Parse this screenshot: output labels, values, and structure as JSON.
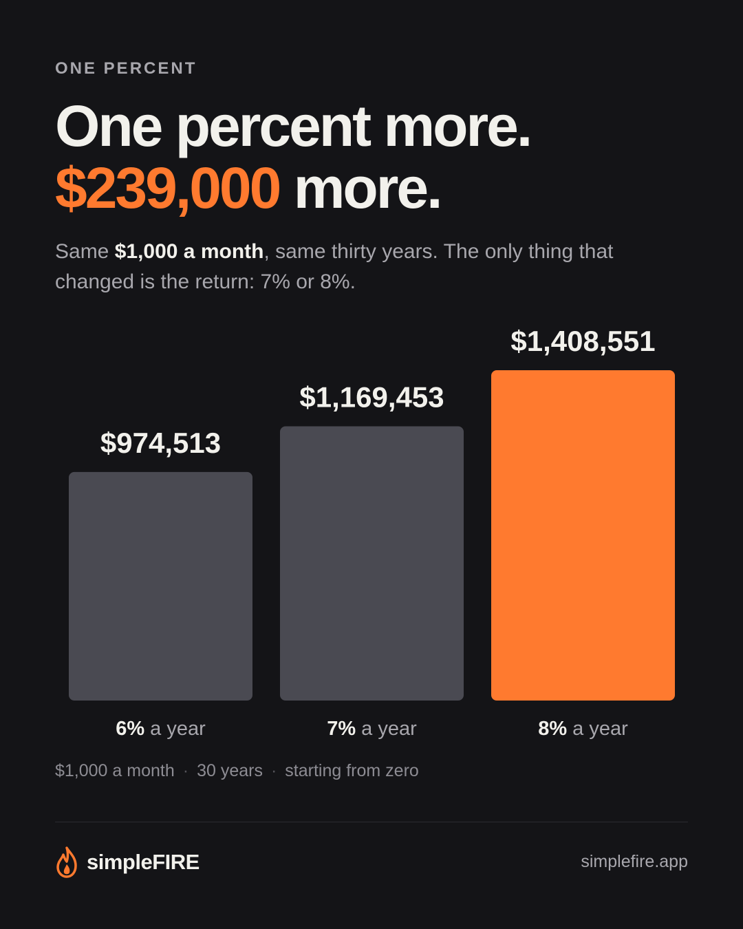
{
  "kicker": "ONE PERCENT",
  "headline": {
    "line1": "One percent more.",
    "highlight": "$239,000",
    "line2_rest": "more."
  },
  "subtitle": {
    "before": "Same",
    "bold": "$1,000 a month",
    "after": ", same thirty years. The only thing that changed is the return: 7% or 8%."
  },
  "chart_data": {
    "type": "bar",
    "categories": [
      "6%",
      "7%",
      "8%"
    ],
    "category_note": "a year",
    "values": [
      974513,
      1169453,
      1408551
    ],
    "value_labels": [
      "$974,513",
      "$1,169,453",
      "$1,408,551"
    ],
    "colors": [
      "#4a4a52",
      "#4a4a52",
      "#ff7a2f"
    ]
  },
  "footnotes": [
    "$1,000 a month",
    "30 years",
    "starting from zero"
  ],
  "footer": {
    "brand": "simpleFIRE",
    "url": "simplefire.app"
  }
}
